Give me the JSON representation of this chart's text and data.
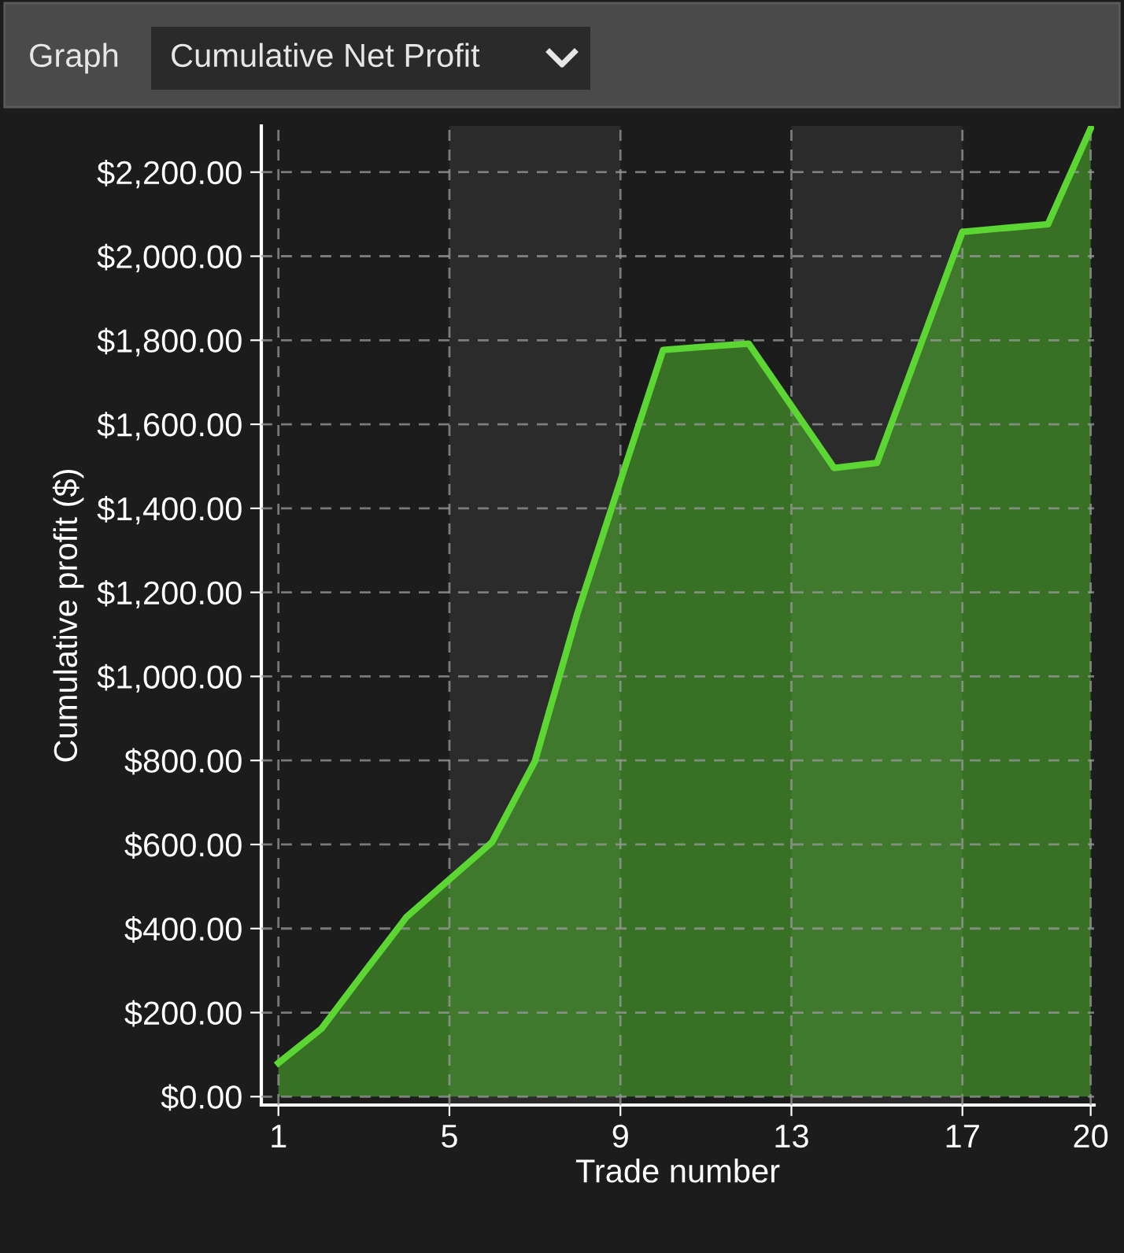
{
  "chart_data": {
    "type": "area",
    "title": "Cumulative Net Profit",
    "annotations": [
      "Graph"
    ],
    "xlabel": "Trade number",
    "ylabel": "Cumulative profit ($)",
    "x": [
      1,
      2,
      3,
      4,
      5,
      6,
      7,
      8,
      9,
      10,
      11,
      12,
      13,
      14,
      15,
      16,
      17,
      18,
      19,
      20
    ],
    "series": [
      {
        "color": "#5cd633",
        "values": [
          80,
          161,
          295,
          428,
          517,
          606,
          798,
          1152,
          1465,
          1777,
          1785,
          1792,
          1644,
          1496,
          1508,
          1783,
          2058,
          2067,
          2076,
          2304
        ]
      }
    ],
    "xlim": [
      0.6,
      20.08
    ],
    "xticks": [
      1,
      5,
      9,
      13,
      17,
      20
    ],
    "ylim": [
      -20,
      2310
    ],
    "yticks": [
      {
        "value": 0,
        "label": "$0.00"
      },
      {
        "value": 200,
        "label": "$200.00"
      },
      {
        "value": 400,
        "label": "$400.00"
      },
      {
        "value": 600,
        "label": "$600.00"
      },
      {
        "value": 800,
        "label": "$800.00"
      },
      {
        "value": 1000,
        "label": "$1,000.00"
      },
      {
        "value": 1200,
        "label": "$1,200.00"
      },
      {
        "value": 1400,
        "label": "$1,400.00"
      },
      {
        "value": 1600,
        "label": "$1,600.00"
      },
      {
        "value": 1800,
        "label": "$1,800.00"
      },
      {
        "value": 2000,
        "label": "$2,000.00"
      },
      {
        "value": 2200,
        "label": "$2,200.00"
      }
    ],
    "bands": [
      {
        "axis": "x",
        "from": 5,
        "to": 9,
        "color": "#2b2b2b"
      },
      {
        "axis": "x",
        "from": 13,
        "to": 17,
        "color": "#2b2b2b"
      }
    ],
    "grid": true,
    "line_style": "solid",
    "marker": "none",
    "legend": false
  }
}
